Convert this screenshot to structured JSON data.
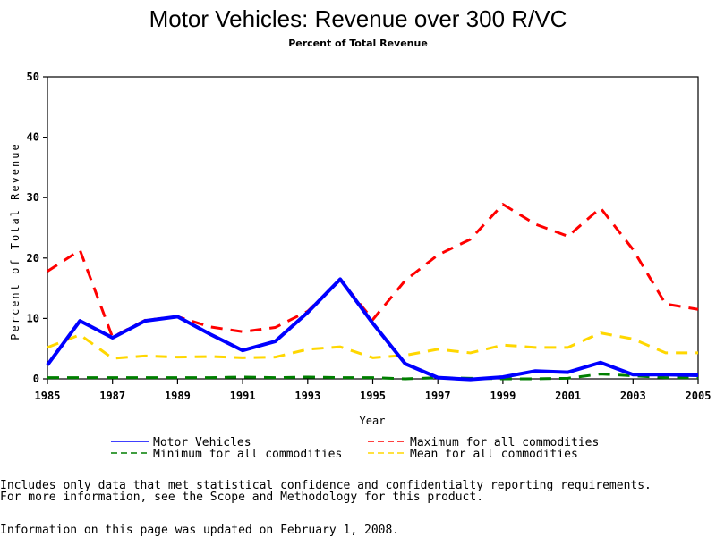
{
  "chart_data": {
    "type": "line",
    "title": "Motor Vehicles: Revenue over 300 R/VC",
    "subtitle": "Percent of Total Revenue",
    "xlabel": "Year",
    "ylabel": "Percent of Total Revenue",
    "xlim": [
      1985,
      2005
    ],
    "ylim": [
      0,
      50
    ],
    "x_ticks": [
      "1985",
      "1987",
      "1989",
      "1991",
      "1993",
      "1995",
      "1997",
      "1999",
      "2001",
      "2003",
      "2005"
    ],
    "y_ticks": [
      "0",
      "10",
      "20",
      "30",
      "40",
      "50"
    ],
    "grid": false,
    "legend_position": "bottom",
    "x": [
      1985,
      1986,
      1987,
      1988,
      1989,
      1990,
      1991,
      1992,
      1993,
      1994,
      1995,
      1996,
      1997,
      1998,
      1999,
      2000,
      2001,
      2002,
      2003,
      2004,
      2005
    ],
    "series": [
      {
        "name": "Motor Vehicles",
        "color": "#0000ff",
        "style": "solid",
        "values": [
          2.3,
          9.6,
          6.8,
          9.6,
          10.3,
          7.4,
          4.7,
          6.2,
          11.0,
          16.5,
          9.2,
          2.5,
          0.2,
          -0.1,
          0.3,
          1.3,
          1.1,
          2.7,
          0.7,
          0.7,
          0.6
        ]
      },
      {
        "name": "Maximum for all commodities",
        "color": "#ff0000",
        "style": "dashed",
        "values": [
          17.8,
          21.3,
          6.9,
          9.7,
          10.3,
          8.6,
          7.8,
          8.5,
          11.2,
          16.4,
          9.8,
          16.3,
          20.5,
          23.1,
          28.9,
          25.6,
          23.6,
          28.3,
          21.4,
          12.4,
          11.5
        ]
      },
      {
        "name": "Minimum for all commodities",
        "color": "#007f00",
        "style": "dashed",
        "values": [
          0.2,
          0.2,
          0.2,
          0.2,
          0.2,
          0.2,
          0.3,
          0.2,
          0.3,
          0.2,
          0.2,
          0.0,
          0.2,
          0.1,
          0.0,
          0.0,
          0.1,
          0.8,
          0.5,
          0.2,
          0.2
        ]
      },
      {
        "name": "Mean for all commodities",
        "color": "#ffd700",
        "style": "dashed",
        "values": [
          5.2,
          7.3,
          3.4,
          3.8,
          3.6,
          3.7,
          3.5,
          3.6,
          4.9,
          5.3,
          3.5,
          3.9,
          4.9,
          4.3,
          5.6,
          5.2,
          5.2,
          7.6,
          6.6,
          4.3,
          4.3
        ]
      }
    ]
  },
  "notes": {
    "line1": "Includes only data that met statistical confidence and confidentialty reporting requirements.",
    "line2": "For more information, see the Scope and Methodology for this product.",
    "updated": "Information on this page was updated on February 1, 2008."
  }
}
